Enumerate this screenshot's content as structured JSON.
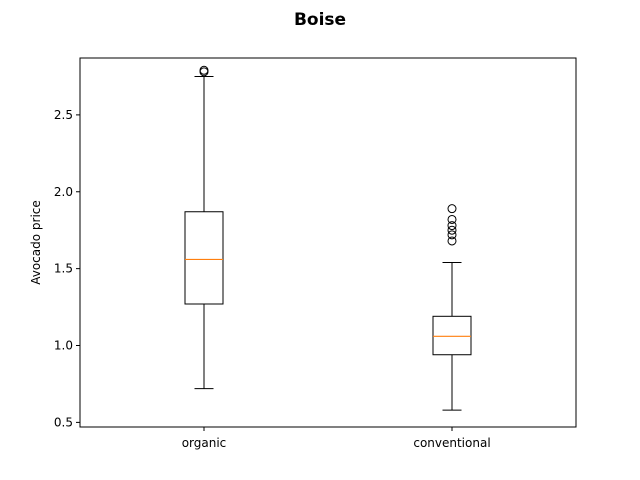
{
  "chart_data": {
    "type": "box",
    "title": "Boise",
    "xlabel": "",
    "ylabel": "Avocado price",
    "categories": [
      "organic",
      "conventional"
    ],
    "ylim": [
      0.47,
      2.87
    ],
    "yticks": [
      0.5,
      1.0,
      1.5,
      2.0,
      2.5
    ],
    "ytick_labels": [
      "0.5",
      "1.0",
      "1.5",
      "2.0",
      "2.5"
    ],
    "grid": false,
    "boxes": [
      {
        "name": "organic",
        "whisker_low": 0.72,
        "q1": 1.27,
        "median": 1.56,
        "q3": 1.87,
        "whisker_high": 2.75,
        "outliers": [
          2.78,
          2.79
        ]
      },
      {
        "name": "conventional",
        "whisker_low": 0.58,
        "q1": 0.94,
        "median": 1.06,
        "q3": 1.19,
        "whisker_high": 1.54,
        "outliers": [
          1.68,
          1.72,
          1.75,
          1.78,
          1.82,
          1.89
        ]
      }
    ],
    "colors": {
      "box": "#000000",
      "median": "#ff7f0e",
      "whisker": "#000000",
      "outlier_edge": "#000000"
    }
  }
}
